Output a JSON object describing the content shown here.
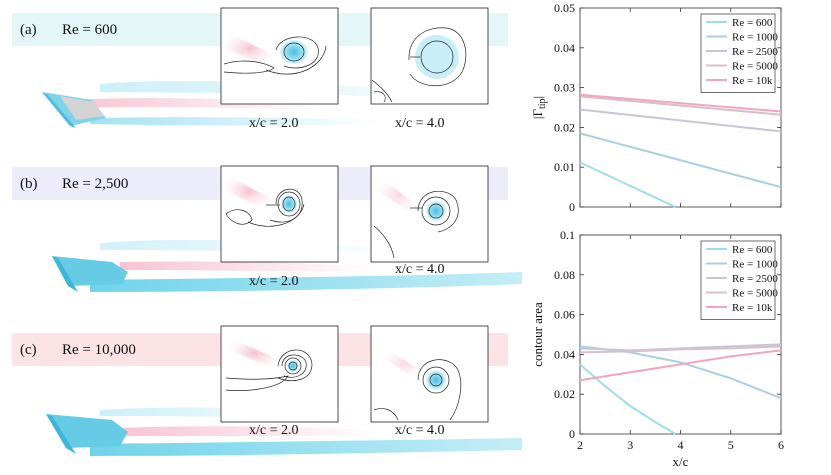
{
  "panels": [
    {
      "label": "(a)",
      "re": "Re = 600",
      "band_color": "#e3f6f8",
      "insets": [
        {
          "caption": "x/c  = 2.0"
        },
        {
          "caption": "x/c  = 4.0"
        }
      ]
    },
    {
      "label": "(b)",
      "re": "Re = 2,500",
      "band_color": "#ececfa",
      "insets": [
        {
          "caption": "x/c  = 2.0"
        },
        {
          "caption": "x/c  = 4.0"
        }
      ]
    },
    {
      "label": "(c)",
      "re": "Re = 10,000",
      "band_color": "#fbe3e6",
      "insets": [
        {
          "caption": "x/c  = 2.0"
        },
        {
          "caption": "x/c  = 4.0"
        }
      ]
    }
  ],
  "colors": {
    "vortex_blue": "#5ccfe6",
    "wake_pink": "#f5a3bd"
  },
  "chart_data": [
    {
      "type": "line",
      "ylabel": "|Γtip|",
      "ylabel_main": "|Γ",
      "ylabel_sub": "tip",
      "ylabel_end": "|",
      "xlabel": "",
      "xlim": [
        2,
        6
      ],
      "ylim": [
        0,
        0.05
      ],
      "yticks": [
        0,
        0.01,
        0.02,
        0.03,
        0.04,
        0.05
      ],
      "ytick_labels": [
        "0",
        "0.01",
        "0.02",
        "0.03",
        "0.04",
        "0.05"
      ],
      "series": [
        {
          "name": "Re = 600",
          "color": "#9fdde9",
          "x": [
            2,
            3.9
          ],
          "y": [
            0.0112,
            0.0
          ]
        },
        {
          "name": "Re = 1000",
          "color": "#a9cfe0",
          "x": [
            2,
            6
          ],
          "y": [
            0.0185,
            0.005
          ]
        },
        {
          "name": "Re = 2500",
          "color": "#c6c6d6",
          "x": [
            2,
            6
          ],
          "y": [
            0.0245,
            0.019
          ]
        },
        {
          "name": "Re = 5000",
          "color": "#d9bfcd",
          "x": [
            2,
            6
          ],
          "y": [
            0.0278,
            0.0232
          ]
        },
        {
          "name": "Re = 10k",
          "color": "#f1a7ba",
          "x": [
            2,
            6
          ],
          "y": [
            0.0282,
            0.024
          ]
        }
      ],
      "legend_location": "top-right"
    },
    {
      "type": "line",
      "ylabel": "contour area",
      "xlabel": "x/c",
      "xlim": [
        2,
        6
      ],
      "ylim": [
        0,
        0.1
      ],
      "xticks": [
        2,
        3,
        4,
        5,
        6
      ],
      "xtick_labels": [
        "2",
        "3",
        "4",
        "5",
        "6"
      ],
      "yticks": [
        0,
        0.02,
        0.04,
        0.06,
        0.08,
        0.1
      ],
      "ytick_labels": [
        "0",
        "0.02",
        "0.04",
        "0.06",
        "0.08",
        "0.1"
      ],
      "series": [
        {
          "name": "Re = 600",
          "color": "#9fdde9",
          "x": [
            2,
            2.5,
            3,
            3.5,
            3.9
          ],
          "y": [
            0.035,
            0.024,
            0.014,
            0.006,
            0.0
          ]
        },
        {
          "name": "Re = 1000",
          "color": "#a9cfe0",
          "x": [
            2,
            3,
            4,
            5,
            6
          ],
          "y": [
            0.044,
            0.041,
            0.036,
            0.028,
            0.018
          ]
        },
        {
          "name": "Re = 2500",
          "color": "#c6c6d6",
          "x": [
            2,
            3,
            4,
            5,
            6
          ],
          "y": [
            0.043,
            0.042,
            0.043,
            0.044,
            0.045
          ]
        },
        {
          "name": "Re = 5000",
          "color": "#d9bfcd",
          "x": [
            2,
            3,
            4,
            5,
            6
          ],
          "y": [
            0.041,
            0.0415,
            0.0425,
            0.043,
            0.044
          ]
        },
        {
          "name": "Re = 10k",
          "color": "#f1a7ba",
          "x": [
            2,
            3,
            4,
            5,
            6
          ],
          "y": [
            0.027,
            0.031,
            0.035,
            0.039,
            0.042
          ]
        }
      ],
      "legend_location": "top-right"
    }
  ]
}
